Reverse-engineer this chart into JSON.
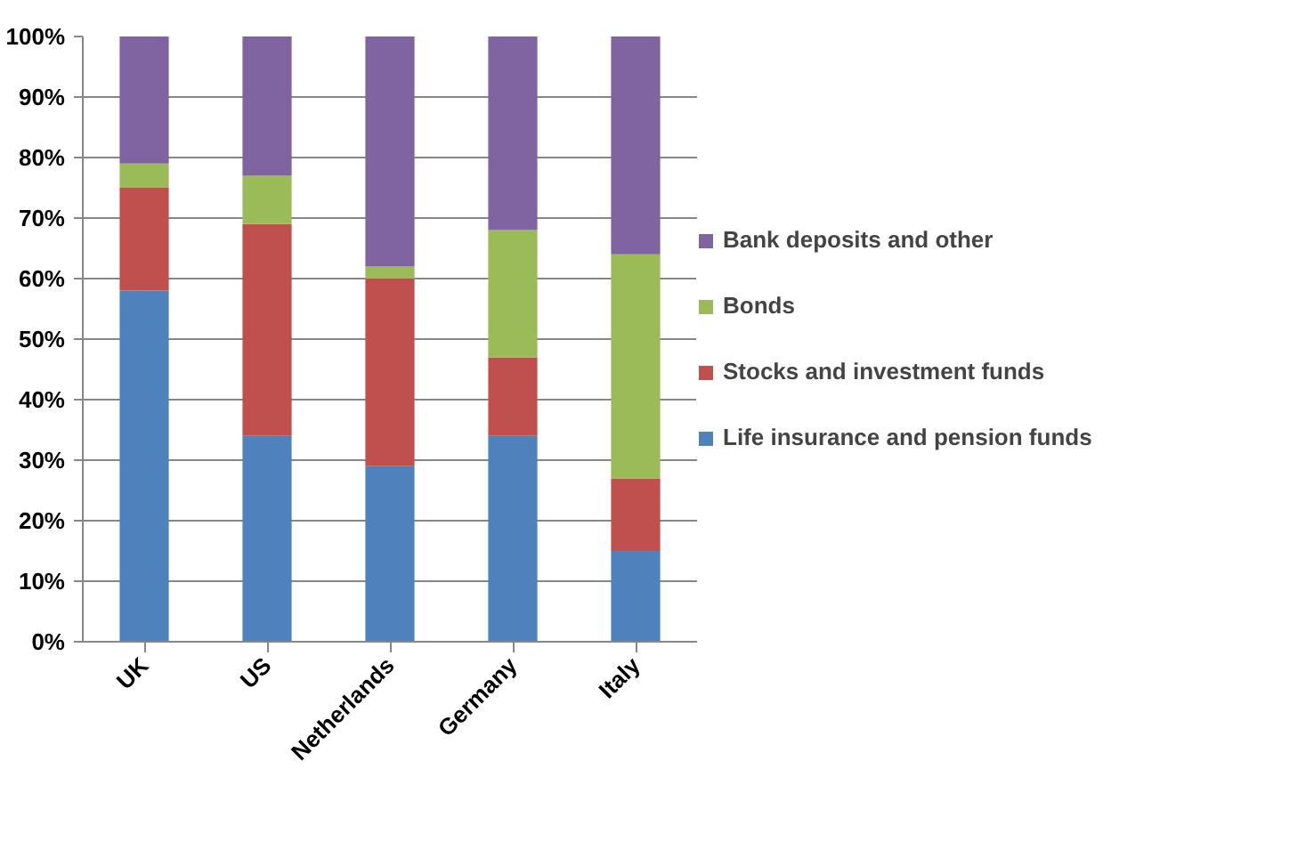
{
  "chart_data": {
    "type": "bar",
    "stacked": true,
    "categories": [
      "UK",
      "US",
      "Netherlands",
      "Germany",
      "Italy"
    ],
    "series": [
      {
        "name": "Life insurance and pension funds",
        "color": "#4f81bd",
        "values": [
          58,
          34,
          29,
          34,
          15
        ]
      },
      {
        "name": "Stocks and investment funds",
        "color": "#c0504d",
        "values": [
          17,
          35,
          31,
          13,
          12
        ]
      },
      {
        "name": "Bonds",
        "color": "#9bbb59",
        "values": [
          4,
          8,
          2,
          21,
          37
        ]
      },
      {
        "name": "Bank deposits and other",
        "color": "#8064a2",
        "values": [
          21,
          23,
          38,
          32,
          36
        ]
      }
    ],
    "ylim": [
      0,
      100
    ],
    "yticks": [
      {
        "value": 0,
        "label": "0%"
      },
      {
        "value": 10,
        "label": "10%"
      },
      {
        "value": 20,
        "label": "20%"
      },
      {
        "value": 30,
        "label": "30%"
      },
      {
        "value": 40,
        "label": "40%"
      },
      {
        "value": 50,
        "label": "50%"
      },
      {
        "value": 60,
        "label": "60%"
      },
      {
        "value": 70,
        "label": "70%"
      },
      {
        "value": 80,
        "label": "80%"
      },
      {
        "value": 90,
        "label": "90%"
      },
      {
        "value": 100,
        "label": "100%"
      }
    ],
    "grid": "y",
    "legend": "right"
  }
}
